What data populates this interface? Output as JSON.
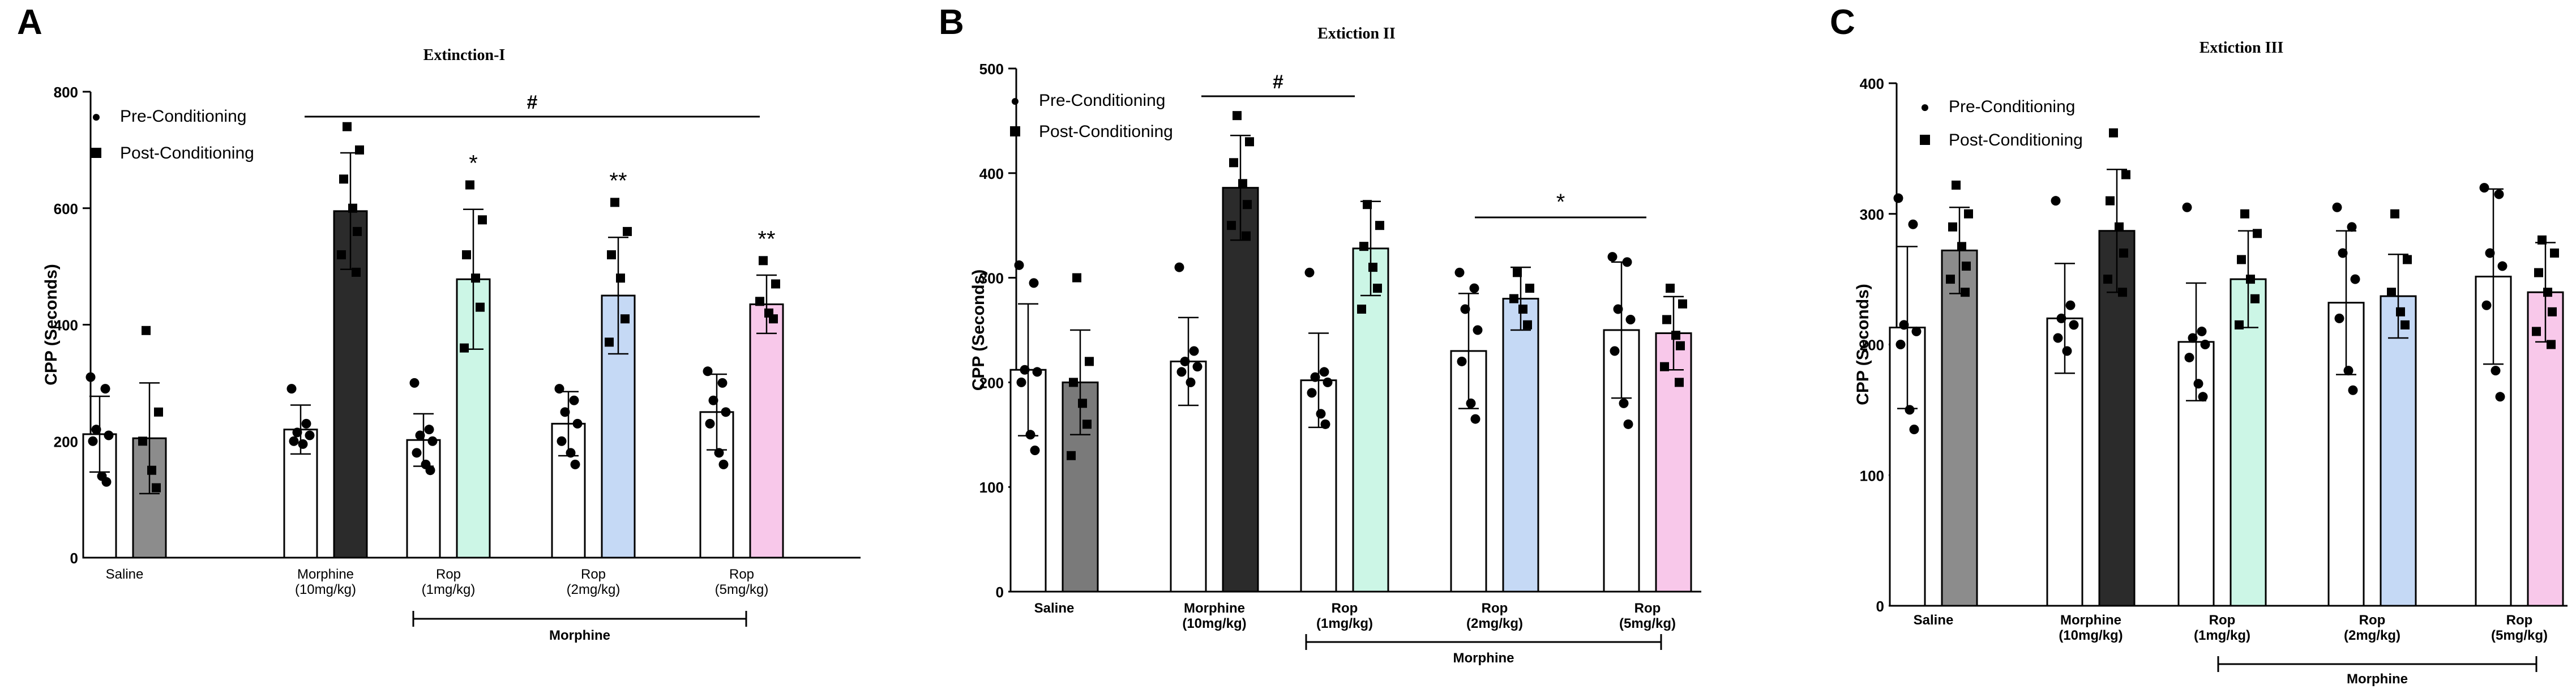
{
  "chart_data": [
    {
      "type": "bar",
      "panel_letter": "A",
      "title": "Extinction-I",
      "ylabel": "CPP (Seconds)",
      "ylim": [
        0,
        800
      ],
      "yticks": [
        0,
        200,
        400,
        600,
        800
      ],
      "grid": false,
      "legend": [
        "Pre-Conditioning",
        "Post-Conditioning"
      ],
      "legend_position": "top-left",
      "categories": [
        "Saline",
        "Morphine (10mg/kg)",
        "Rop (1mg/kg)",
        "Rop (2mg/kg)",
        "Rop (5mg/kg)"
      ],
      "series": [
        {
          "name": "Pre-Conditioning",
          "values": [
            212,
            220,
            202,
            230,
            250
          ],
          "sd": [
            65,
            42,
            45,
            55,
            65
          ],
          "points": [
            [
              310,
              290,
              220,
              210,
              200,
              140,
              130
            ],
            [
              290,
              230,
              215,
              210,
              200,
              195
            ],
            [
              300,
              220,
              210,
              200,
              180,
              160,
              150
            ],
            [
              290,
              270,
              250,
              230,
              200,
              180,
              160
            ],
            [
              320,
              300,
              270,
              250,
              230,
              180,
              160
            ]
          ]
        },
        {
          "name": "Post-Conditioning",
          "values": [
            205,
            595,
            478,
            450,
            435
          ],
          "sd": [
            95,
            100,
            120,
            100,
            50
          ],
          "points": [
            [
              390,
              250,
              200,
              150,
              120
            ],
            [
              740,
              700,
              650,
              600,
              560,
              520,
              490
            ],
            [
              640,
              580,
              520,
              480,
              430,
              360
            ],
            [
              610,
              560,
              520,
              480,
              410,
              370
            ],
            [
              510,
              470,
              440,
              420,
              410
            ]
          ]
        }
      ],
      "post_fill_colors": [
        "#8c8c8c",
        "#2b2b2b",
        "#ccf6e6",
        "#c5d9f5",
        "#f8c8ea"
      ],
      "significance": {
        "hash": "#",
        "stars": [
          "",
          "",
          "*",
          "**",
          "**"
        ]
      },
      "bracket_label": "Morphine"
    },
    {
      "type": "bar",
      "panel_letter": "B",
      "title": "Extiction II",
      "ylabel": "CPP (Seconds)",
      "ylim": [
        0,
        500
      ],
      "yticks": [
        0,
        100,
        200,
        300,
        400,
        500
      ],
      "grid": false,
      "legend": [
        "Pre-Conditioning",
        "Post-Conditioning"
      ],
      "legend_position": "top-left",
      "categories": [
        "Saline",
        "Morphine (10mg/kg)",
        "Rop (1mg/kg)",
        "Rop (2mg/kg)",
        "Rop (5mg/kg)"
      ],
      "series": [
        {
          "name": "Pre-Conditioning",
          "values": [
            212,
            220,
            202,
            230,
            250
          ],
          "sd": [
            63,
            42,
            45,
            55,
            65
          ],
          "points": [
            [
              312,
              295,
              212,
              210,
              200,
              150,
              135
            ],
            [
              310,
              230,
              220,
              215,
              210,
              200
            ],
            [
              305,
              210,
              205,
              200,
              190,
              170,
              160
            ],
            [
              305,
              290,
              270,
              250,
              220,
              180,
              165
            ],
            [
              320,
              315,
              270,
              260,
              230,
              180,
              160
            ]
          ]
        },
        {
          "name": "Post-Conditioning",
          "values": [
            200,
            386,
            328,
            280,
            247
          ],
          "sd": [
            50,
            50,
            45,
            30,
            35
          ],
          "points": [
            [
              300,
              220,
              200,
              180,
              160,
              130
            ],
            [
              455,
              430,
              410,
              390,
              370,
              350,
              340
            ],
            [
              370,
              350,
              330,
              310,
              290,
              270
            ],
            [
              305,
              290,
              280,
              270,
              255
            ],
            [
              290,
              275,
              260,
              245,
              235,
              215,
              200
            ]
          ]
        }
      ],
      "post_fill_colors": [
        "#7a7a7a",
        "#2b2b2b",
        "#ccf6e6",
        "#c5d9f5",
        "#f8c8ea"
      ],
      "significance": {
        "hash": "#",
        "star": "*"
      },
      "bracket_label": "Morphine"
    },
    {
      "type": "bar",
      "panel_letter": "C",
      "title": "Extiction III",
      "ylabel": "CPP (Seconds)",
      "ylim": [
        0,
        400
      ],
      "yticks": [
        0,
        100,
        200,
        300,
        400
      ],
      "grid": false,
      "legend": [
        "Pre-Conditioning",
        "Post-Conditioning"
      ],
      "legend_position": "top-left",
      "categories": [
        "Saline",
        "Morphine (10mg/kg)",
        "Rop (1mg/kg)",
        "Rop (2mg/kg)",
        "Rop (5mg/kg)"
      ],
      "series": [
        {
          "name": "Pre-Conditioning",
          "values": [
            213,
            220,
            202,
            232,
            252
          ],
          "sd": [
            62,
            42,
            45,
            55,
            67
          ],
          "points": [
            [
              312,
              292,
              215,
              210,
              200,
              150,
              135
            ],
            [
              310,
              230,
              220,
              215,
              205,
              195
            ],
            [
              305,
              210,
              205,
              200,
              190,
              170,
              160
            ],
            [
              305,
              290,
              270,
              250,
              220,
              180,
              165
            ],
            [
              320,
              315,
              270,
              260,
              230,
              180,
              160
            ]
          ]
        },
        {
          "name": "Post-Conditioning",
          "values": [
            272,
            287,
            250,
            237,
            240
          ],
          "sd": [
            33,
            47,
            37,
            32,
            38
          ],
          "points": [
            [
              322,
              300,
              290,
              275,
              260,
              250,
              240
            ],
            [
              362,
              330,
              310,
              290,
              270,
              250,
              240
            ],
            [
              300,
              285,
              265,
              250,
              235,
              215
            ],
            [
              300,
              265,
              240,
              225,
              215
            ],
            [
              280,
              270,
              255,
              240,
              225,
              210,
              200
            ]
          ]
        }
      ],
      "post_fill_colors": [
        "#8c8c8c",
        "#2b2b2b",
        "#ccf6e6",
        "#c5d9f5",
        "#f8c8ea"
      ],
      "bracket_label": "Morphine"
    }
  ]
}
